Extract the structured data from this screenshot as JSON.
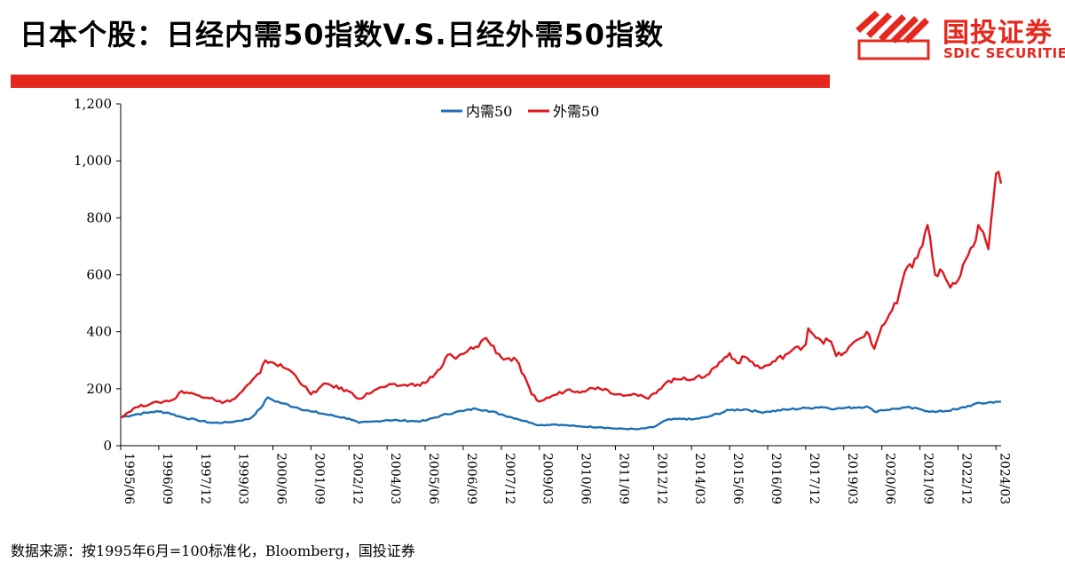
{
  "header": {
    "title": "日本个股：日经内需50指数V.S.日经外需50指数"
  },
  "logo": {
    "name_cn": "国投证券",
    "name_en": "SDIC SECURITIES",
    "brand_color": "#e5281e"
  },
  "footer": {
    "source": "数据来源：按1995年6月=100标准化，Bloomberg，国投证券"
  },
  "chart_data": {
    "type": "line",
    "title": "",
    "xlabel": "",
    "ylabel": "",
    "ylim": [
      0,
      1200
    ],
    "yticks": [
      0,
      200,
      400,
      600,
      800,
      1000,
      1200
    ],
    "ytick_labels": [
      "0",
      "200",
      "400",
      "600",
      "800",
      "1,000",
      "1,200"
    ],
    "x_start": "1995/06",
    "x_end": "2024/05",
    "xtick_labels": [
      "1995/06",
      "1996/09",
      "1997/12",
      "1999/03",
      "2000/06",
      "2001/09",
      "2002/12",
      "2004/03",
      "2005/06",
      "2006/09",
      "2007/12",
      "2009/03",
      "2010/06",
      "2011/09",
      "2012/12",
      "2014/03",
      "2015/06",
      "2016/09",
      "2017/12",
      "2019/03",
      "2020/06",
      "2021/09",
      "2022/12",
      "2024/03"
    ],
    "legend_position": "top-center",
    "grid": false,
    "series": [
      {
        "name": "内需50",
        "color": "#1f6fb5",
        "points": [
          [
            "1995/06",
            100
          ],
          [
            "1995/12",
            110
          ],
          [
            "1996/06",
            118
          ],
          [
            "1996/09",
            120
          ],
          [
            "1997/01",
            115
          ],
          [
            "1997/06",
            100
          ],
          [
            "1997/12",
            90
          ],
          [
            "1998/06",
            80
          ],
          [
            "1998/12",
            82
          ],
          [
            "1999/03",
            85
          ],
          [
            "1999/09",
            95
          ],
          [
            "2000/01",
            130
          ],
          [
            "2000/04",
            170
          ],
          [
            "2000/06",
            160
          ],
          [
            "2000/10",
            148
          ],
          [
            "2001/03",
            135
          ],
          [
            "2001/09",
            120
          ],
          [
            "2002/03",
            110
          ],
          [
            "2002/12",
            95
          ],
          [
            "2003/04",
            80
          ],
          [
            "2003/10",
            85
          ],
          [
            "2004/03",
            90
          ],
          [
            "2004/09",
            88
          ],
          [
            "2005/03",
            86
          ],
          [
            "2005/06",
            88
          ],
          [
            "2005/12",
            105
          ],
          [
            "2006/06",
            118
          ],
          [
            "2006/09",
            122
          ],
          [
            "2007/02",
            130
          ],
          [
            "2007/06",
            125
          ],
          [
            "2007/12",
            110
          ],
          [
            "2008/06",
            95
          ],
          [
            "2008/12",
            80
          ],
          [
            "2009/03",
            72
          ],
          [
            "2009/09",
            75
          ],
          [
            "2010/06",
            68
          ],
          [
            "2011/03",
            65
          ],
          [
            "2011/09",
            60
          ],
          [
            "2012/06",
            58
          ],
          [
            "2012/12",
            65
          ],
          [
            "2013/05",
            90
          ],
          [
            "2013/12",
            95
          ],
          [
            "2014/03",
            92
          ],
          [
            "2014/09",
            100
          ],
          [
            "2015/06",
            125
          ],
          [
            "2015/12",
            128
          ],
          [
            "2016/06",
            118
          ],
          [
            "2016/09",
            120
          ],
          [
            "2017/06",
            128
          ],
          [
            "2017/12",
            132
          ],
          [
            "2018/06",
            136
          ],
          [
            "2018/12",
            130
          ],
          [
            "2019/03",
            132
          ],
          [
            "2019/12",
            138
          ],
          [
            "2020/03",
            120
          ],
          [
            "2020/06",
            125
          ],
          [
            "2020/12",
            130
          ],
          [
            "2021/03",
            134
          ],
          [
            "2021/09",
            128
          ],
          [
            "2022/03",
            118
          ],
          [
            "2022/12",
            128
          ],
          [
            "2023/06",
            145
          ],
          [
            "2024/03",
            155
          ],
          [
            "2024/05",
            155
          ]
        ]
      },
      {
        "name": "外需50",
        "color": "#e0161d",
        "points": [
          [
            "1995/06",
            100
          ],
          [
            "1995/12",
            135
          ],
          [
            "1996/06",
            148
          ],
          [
            "1996/09",
            152
          ],
          [
            "1997/03",
            162
          ],
          [
            "1997/06",
            192
          ],
          [
            "1997/12",
            178
          ],
          [
            "1998/06",
            168
          ],
          [
            "1998/10",
            150
          ],
          [
            "1999/03",
            165
          ],
          [
            "1999/09",
            220
          ],
          [
            "2000/01",
            255
          ],
          [
            "2000/03",
            300
          ],
          [
            "2000/06",
            292
          ],
          [
            "2000/12",
            268
          ],
          [
            "2001/03",
            245
          ],
          [
            "2001/09",
            180
          ],
          [
            "2002/03",
            218
          ],
          [
            "2002/12",
            190
          ],
          [
            "2003/04",
            165
          ],
          [
            "2003/10",
            195
          ],
          [
            "2004/03",
            210
          ],
          [
            "2004/09",
            212
          ],
          [
            "2005/03",
            215
          ],
          [
            "2005/06",
            220
          ],
          [
            "2005/12",
            270
          ],
          [
            "2006/03",
            320
          ],
          [
            "2006/06",
            305
          ],
          [
            "2006/09",
            322
          ],
          [
            "2007/02",
            348
          ],
          [
            "2007/06",
            378
          ],
          [
            "2007/12",
            310
          ],
          [
            "2008/06",
            300
          ],
          [
            "2008/12",
            180
          ],
          [
            "2009/03",
            155
          ],
          [
            "2009/09",
            178
          ],
          [
            "2010/03",
            198
          ],
          [
            "2010/06",
            190
          ],
          [
            "2011/02",
            205
          ],
          [
            "2011/06",
            195
          ],
          [
            "2011/09",
            180
          ],
          [
            "2012/04",
            182
          ],
          [
            "2012/10",
            165
          ],
          [
            "2013/05",
            222
          ],
          [
            "2013/12",
            240
          ],
          [
            "2014/03",
            232
          ],
          [
            "2014/09",
            248
          ],
          [
            "2015/06",
            325
          ],
          [
            "2015/09",
            290
          ],
          [
            "2015/12",
            312
          ],
          [
            "2016/06",
            272
          ],
          [
            "2016/09",
            282
          ],
          [
            "2017/06",
            330
          ],
          [
            "2017/12",
            355
          ],
          [
            "2018/01",
            412
          ],
          [
            "2018/06",
            370
          ],
          [
            "2018/10",
            365
          ],
          [
            "2018/12",
            315
          ],
          [
            "2019/03",
            325
          ],
          [
            "2019/12",
            400
          ],
          [
            "2020/03",
            340
          ],
          [
            "2020/06",
            420
          ],
          [
            "2020/12",
            500
          ],
          [
            "2021/03",
            610
          ],
          [
            "2021/06",
            625
          ],
          [
            "2021/09",
            690
          ],
          [
            "2021/12",
            775
          ],
          [
            "2022/03",
            600
          ],
          [
            "2022/06",
            610
          ],
          [
            "2022/09",
            555
          ],
          [
            "2022/12",
            580
          ],
          [
            "2023/06",
            700
          ],
          [
            "2023/08",
            775
          ],
          [
            "2023/12",
            690
          ],
          [
            "2024/03",
            955
          ],
          [
            "2024/05",
            920
          ]
        ]
      }
    ]
  }
}
